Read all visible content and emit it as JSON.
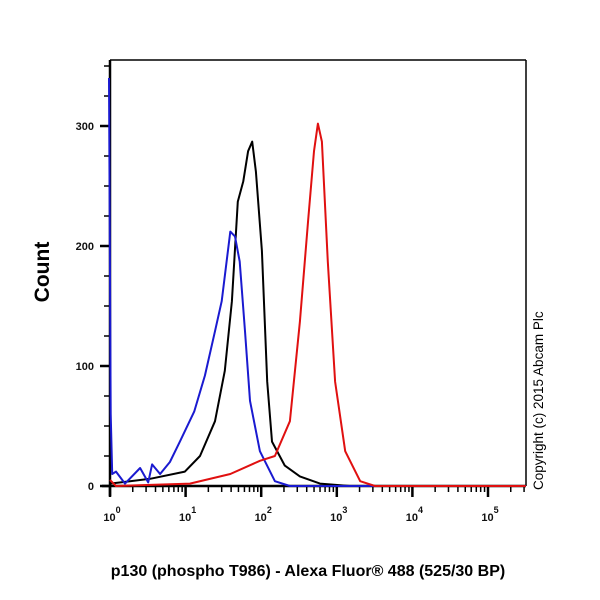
{
  "chart_data": {
    "type": "line",
    "title": "",
    "xlabel": "p130 (phospho T986) - Alexa Fluor® 488 (525/30 BP)",
    "ylabel": "Count",
    "x_scale": "log",
    "xlim": [
      1,
      316000
    ],
    "ylim": [
      0,
      354
    ],
    "x_ticks": [
      {
        "base": "10",
        "exp": "0",
        "value": 1
      },
      {
        "base": "10",
        "exp": "1",
        "value": 10
      },
      {
        "base": "10",
        "exp": "2",
        "value": 100
      },
      {
        "base": "10",
        "exp": "3",
        "value": 1000
      },
      {
        "base": "10",
        "exp": "4",
        "value": 10000
      },
      {
        "base": "10",
        "exp": "5",
        "value": 100000
      }
    ],
    "y_ticks": [
      {
        "label": "0",
        "value": 0
      },
      {
        "label": "100",
        "value": 100
      },
      {
        "label": "200",
        "value": 200
      },
      {
        "label": "300",
        "value": 300
      }
    ],
    "grid": false,
    "annotation": "Copyright (c) 2015 Abcam Plc",
    "series": [
      {
        "color": "#000000",
        "points": [
          [
            1,
            2
          ],
          [
            3.4,
            6
          ],
          [
            9.8,
            12
          ],
          [
            15.5,
            25
          ],
          [
            24.5,
            54
          ],
          [
            33,
            96
          ],
          [
            41,
            154
          ],
          [
            49,
            237
          ],
          [
            58,
            254
          ],
          [
            67,
            279
          ],
          [
            76,
            287
          ],
          [
            85,
            262
          ],
          [
            102,
            196
          ],
          [
            120,
            87
          ],
          [
            139,
            37
          ],
          [
            205,
            17
          ],
          [
            325,
            8
          ],
          [
            600,
            2
          ],
          [
            1480,
            0
          ],
          [
            316000,
            0
          ]
        ]
      },
      {
        "color": "#1a1ad0",
        "points": [
          [
            0.97,
            340
          ],
          [
            1.02,
            60
          ],
          [
            1.07,
            10
          ],
          [
            1.2,
            12
          ],
          [
            1.58,
            2
          ],
          [
            2.5,
            15
          ],
          [
            3.2,
            3
          ],
          [
            3.6,
            18
          ],
          [
            4.6,
            10
          ],
          [
            6.2,
            20
          ],
          [
            8.4,
            37
          ],
          [
            13,
            62
          ],
          [
            18,
            92
          ],
          [
            24.5,
            129
          ],
          [
            30,
            154
          ],
          [
            39,
            212
          ],
          [
            45,
            208
          ],
          [
            52,
            187
          ],
          [
            61,
            129
          ],
          [
            71,
            71
          ],
          [
            96,
            29
          ],
          [
            152,
            4
          ],
          [
            240,
            0
          ],
          [
            316000,
            0
          ]
        ]
      },
      {
        "color": "#e01010",
        "points": [
          [
            1,
            5
          ],
          [
            1.2,
            0
          ],
          [
            11.4,
            2
          ],
          [
            39,
            10
          ],
          [
            96,
            21
          ],
          [
            152,
            25
          ],
          [
            240,
            54
          ],
          [
            325,
            137
          ],
          [
            417,
            221
          ],
          [
            500,
            279
          ],
          [
            562,
            302
          ],
          [
            635,
            287
          ],
          [
            760,
            187
          ],
          [
            950,
            87
          ],
          [
            1290,
            29
          ],
          [
            2040,
            4
          ],
          [
            3200,
            0
          ],
          [
            316000,
            0
          ]
        ]
      }
    ]
  }
}
